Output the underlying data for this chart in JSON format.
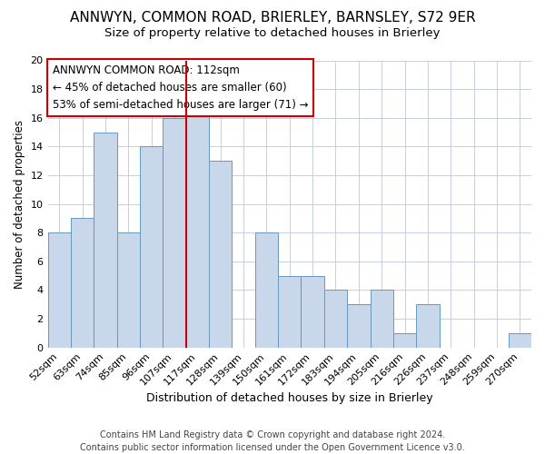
{
  "title1": "ANNWYN, COMMON ROAD, BRIERLEY, BARNSLEY, S72 9ER",
  "title2": "Size of property relative to detached houses in Brierley",
  "xlabel": "Distribution of detached houses by size in Brierley",
  "ylabel": "Number of detached properties",
  "categories": [
    "52sqm",
    "63sqm",
    "74sqm",
    "85sqm",
    "96sqm",
    "107sqm",
    "117sqm",
    "128sqm",
    "139sqm",
    "150sqm",
    "161sqm",
    "172sqm",
    "183sqm",
    "194sqm",
    "205sqm",
    "216sqm",
    "226sqm",
    "237sqm",
    "248sqm",
    "259sqm",
    "270sqm"
  ],
  "values": [
    8,
    9,
    15,
    8,
    14,
    16,
    17,
    13,
    0,
    8,
    5,
    5,
    4,
    3,
    4,
    1,
    3,
    0,
    0,
    0,
    1
  ],
  "bar_color": "#c8d8ea",
  "bar_edge_color": "#6699bb",
  "annotation_text": "ANNWYN COMMON ROAD: 112sqm\n← 45% of detached houses are smaller (60)\n53% of semi-detached houses are larger (71) →",
  "annotation_box_color": "white",
  "annotation_box_edge_color": "#cc0000",
  "ref_line_color": "#cc0000",
  "ylim": [
    0,
    20
  ],
  "yticks": [
    0,
    2,
    4,
    6,
    8,
    10,
    12,
    14,
    16,
    18,
    20
  ],
  "background_color": "#ffffff",
  "plot_bg_color": "#ffffff",
  "grid_color": "#c5cfe0",
  "footer": "Contains HM Land Registry data © Crown copyright and database right 2024.\nContains public sector information licensed under the Open Government Licence v3.0.",
  "title1_fontsize": 11,
  "title2_fontsize": 9.5,
  "xlabel_fontsize": 9,
  "ylabel_fontsize": 8.5,
  "tick_fontsize": 8,
  "annotation_fontsize": 8.5,
  "footer_fontsize": 7
}
